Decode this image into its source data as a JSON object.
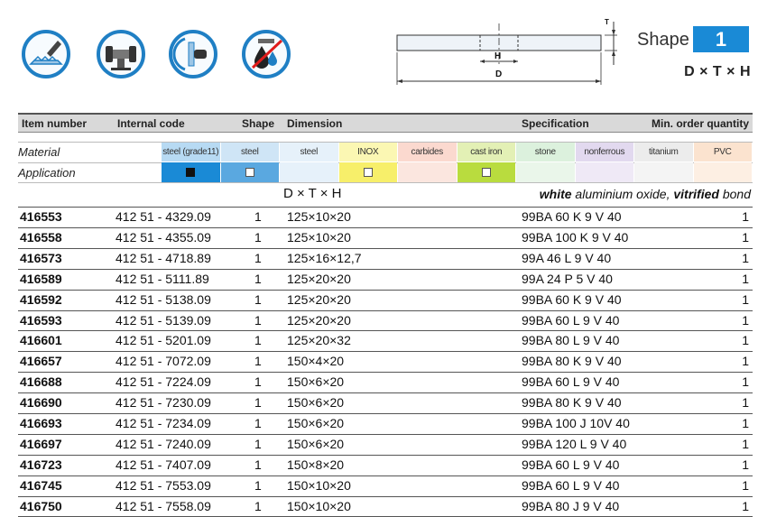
{
  "header_icons": [
    {
      "name": "cutting-tool-icon"
    },
    {
      "name": "bench-grinder-icon"
    },
    {
      "name": "angle-grinder-icon"
    },
    {
      "name": "no-coolant-icon"
    }
  ],
  "shape": {
    "label": "Shape",
    "number": "1",
    "formula": "D × T × H",
    "diagram_labels": {
      "h": "H",
      "d": "D",
      "t": "T"
    }
  },
  "table": {
    "headers": {
      "item": "Item number",
      "code": "Internal code",
      "shape": "Shape",
      "dimension": "Dimension",
      "specification": "Specification",
      "moq": "Min. order quantity"
    },
    "material_label": "Material",
    "application_label": "Application",
    "materials": [
      {
        "label": "steel (grade11)",
        "color": "#b7daf3",
        "app_color": "#1a8ad6",
        "check": "filled"
      },
      {
        "label": "steel (<55HRC)",
        "color": "#cfe5f6",
        "app_color": "#5aa8e0",
        "check": "empty"
      },
      {
        "label": "steel (<67HRC)",
        "color": "#e6f1fa",
        "app_color": "#e6f1fa",
        "check": "none"
      },
      {
        "label": "INOX",
        "color": "#fbf7b3",
        "app_color": "#f7ef6a",
        "check": "empty"
      },
      {
        "label": "carbides",
        "color": "#fbd9cf",
        "app_color": "#fbe6df",
        "check": "none"
      },
      {
        "label": "cast iron",
        "color": "#e3f0b5",
        "app_color": "#b9dc3e",
        "check": "empty"
      },
      {
        "label": "stone",
        "color": "#dcf1dd",
        "app_color": "#eaf6ea",
        "check": "none"
      },
      {
        "label": "nonferrous metals",
        "color": "#e2d9ef",
        "app_color": "#efe9f6",
        "check": "none"
      },
      {
        "label": "titanium",
        "color": "#ececec",
        "app_color": "#f4f4f4",
        "check": "none"
      },
      {
        "label": "PVC",
        "color": "#fbe3cf",
        "app_color": "#fdefe3",
        "check": "none"
      }
    ],
    "dimension_subheader": "D × T × H",
    "spec_note": {
      "b1": "white",
      "t1": " aluminium oxide, ",
      "b2": "vitrified",
      "t2": " bond"
    },
    "rows": [
      {
        "item": "416553",
        "code": "412 51 - 4329.09",
        "shape": "1",
        "dim": "125×10×20",
        "spec": "99BA  60 K 9 V 40",
        "moq": "1"
      },
      {
        "item": "416558",
        "code": "412 51 - 4355.09",
        "shape": "1",
        "dim": "125×10×20",
        "spec": "99BA  100 K 9 V 40",
        "moq": "1"
      },
      {
        "item": "416573",
        "code": "412 51 - 4718.89",
        "shape": "1",
        "dim": "125×16×12,7",
        "spec": "99A  46 L 9 V 40",
        "moq": "1"
      },
      {
        "item": "416589",
        "code": "412 51 - 5111.89",
        "shape": "1",
        "dim": "125×20×20",
        "spec": "99A  24 P 5 V 40",
        "moq": "1"
      },
      {
        "item": "416592",
        "code": "412 51 - 5138.09",
        "shape": "1",
        "dim": "125×20×20",
        "spec": "99BA  60 K  9 V 40",
        "moq": "1"
      },
      {
        "item": "416593",
        "code": "412 51 - 5139.09",
        "shape": "1",
        "dim": "125×20×20",
        "spec": "99BA  60 L 9 V 40",
        "moq": "1"
      },
      {
        "item": "416601",
        "code": "412 51 - 5201.09",
        "shape": "1",
        "dim": "125×20×32",
        "spec": "99BA  80 L 9 V 40",
        "moq": "1"
      },
      {
        "item": "416657",
        "code": "412 51 - 7072.09",
        "shape": "1",
        "dim": "150×4×20",
        "spec": "99BA  80 K 9 V 40",
        "moq": "1"
      },
      {
        "item": "416688",
        "code": "412 51 - 7224.09",
        "shape": "1",
        "dim": "150×6×20",
        "spec": "99BA  60 L 9 V 40",
        "moq": "1"
      },
      {
        "item": "416690",
        "code": "412 51 - 7230.09",
        "shape": "1",
        "dim": "150×6×20",
        "spec": "99BA  80 K 9 V 40",
        "moq": "1"
      },
      {
        "item": "416693",
        "code": "412 51 - 7234.09",
        "shape": "1",
        "dim": "150×6×20",
        "spec": "99BA  100 J 10V 40",
        "moq": "1"
      },
      {
        "item": "416697",
        "code": "412 51 - 7240.09",
        "shape": "1",
        "dim": "150×6×20",
        "spec": "99BA  120 L 9 V 40",
        "moq": "1"
      },
      {
        "item": "416723",
        "code": "412 51 - 7407.09",
        "shape": "1",
        "dim": "150×8×20",
        "spec": "99BA  60 L 9 V 40",
        "moq": "1"
      },
      {
        "item": "416745",
        "code": "412 51 - 7553.09",
        "shape": "1",
        "dim": "150×10×20",
        "spec": "99BA  60 L 9 V 40",
        "moq": "1"
      },
      {
        "item": "416750",
        "code": "412 51 - 7558.09",
        "shape": "1",
        "dim": "150×10×20",
        "spec": "99BA  80 J 9 V 40",
        "moq": "1"
      }
    ]
  }
}
